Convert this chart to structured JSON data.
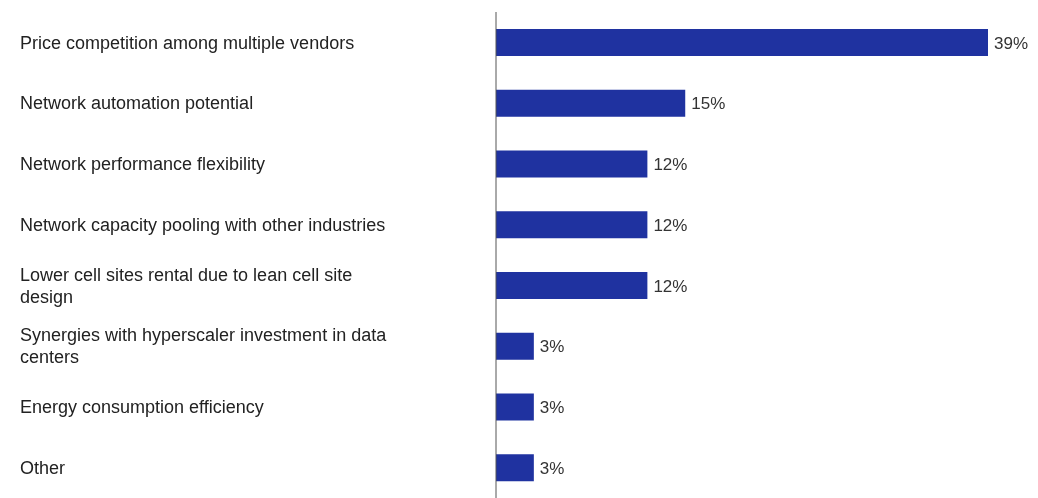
{
  "chart_data": {
    "type": "bar",
    "orientation": "horizontal",
    "categories": [
      "Price competition among multiple vendors",
      "Network automation potential",
      "Network performance flexibility",
      "Network capacity pooling with other industries",
      "Lower cell sites rental due to lean cell site design",
      "Synergies with hyperscaler investment in data centers",
      "Energy consumption efficiency",
      "Other"
    ],
    "values": [
      39,
      15,
      12,
      12,
      12,
      3,
      3,
      3
    ],
    "value_labels": [
      "39%",
      "15%",
      "12%",
      "12%",
      "12%",
      "3%",
      "3%",
      "3%"
    ],
    "color": "#1f32a0",
    "grid": false,
    "legend": false
  }
}
